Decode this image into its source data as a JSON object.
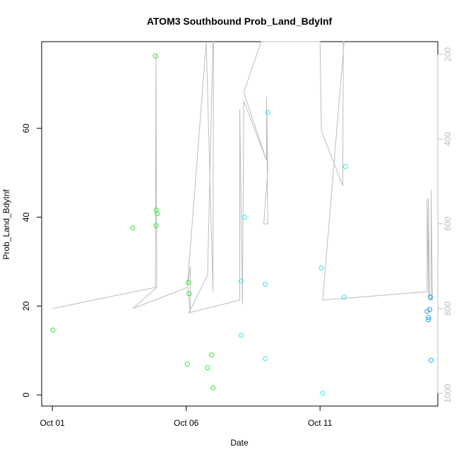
{
  "chart_data": {
    "type": "scatter",
    "title": "ATOM3 Southbound Prob_Land_BdyInf",
    "xlabel": "Date",
    "ylabel": "Prob_Land_BdyInf",
    "x_ticks": [
      {
        "value": 0,
        "label": "Oct 01"
      },
      {
        "value": 5,
        "label": "Oct 06"
      },
      {
        "value": 10,
        "label": "Oct 11"
      }
    ],
    "y_ticks": [
      0,
      20,
      40,
      60
    ],
    "y2_ticks": [
      200,
      400,
      600,
      800,
      1000
    ],
    "xlim": [
      -0.4,
      14.4
    ],
    "ylim": [
      -2.5,
      79.5
    ],
    "y2lim": [
      1030,
      170
    ],
    "colors": {
      "green": "#2ee82e",
      "cyan": "#33e8e8",
      "blue": "#1a9fe6",
      "line": "#bdbdbd",
      "frame": "#000000",
      "right_axis": "#bdbdbd"
    },
    "series": [
      {
        "color_key": "green",
        "points": [
          [
            0.02,
            14.6
          ],
          [
            3.0,
            37.6
          ],
          [
            3.85,
            76.3
          ],
          [
            3.88,
            41.6
          ],
          [
            3.88,
            38.1
          ],
          [
            3.92,
            40.8
          ],
          [
            5.08,
            25.3
          ],
          [
            5.1,
            22.8
          ],
          [
            5.05,
            6.9
          ],
          [
            5.8,
            6.1
          ],
          [
            5.95,
            9.0
          ],
          [
            6.0,
            1.6
          ]
        ]
      },
      {
        "color_key": "cyan",
        "points": [
          [
            7.05,
            13.4
          ],
          [
            7.05,
            25.6
          ],
          [
            7.18,
            40.0
          ],
          [
            7.95,
            24.9
          ],
          [
            7.95,
            8.2
          ],
          [
            8.05,
            63.6
          ],
          [
            10.05,
            28.6
          ],
          [
            10.1,
            0.4
          ],
          [
            10.9,
            22.0
          ],
          [
            10.95,
            51.4
          ]
        ]
      },
      {
        "color_key": "blue",
        "points": [
          [
            14.0,
            18.8
          ],
          [
            14.05,
            17.4
          ],
          [
            14.05,
            16.9
          ],
          [
            14.1,
            19.2
          ],
          [
            14.12,
            22.0
          ],
          [
            14.12,
            22.0
          ],
          [
            14.15,
            7.8
          ]
        ]
      }
    ],
    "secondary_line": {
      "points": [
        [
          0.0,
          800
        ],
        [
          3.85,
          750
        ],
        [
          3.87,
          200
        ],
        [
          3.9,
          750
        ],
        [
          3.0,
          800
        ],
        [
          5.05,
          750
        ],
        [
          5.15,
          700
        ],
        [
          5.15,
          810
        ],
        [
          5.05,
          740
        ],
        [
          5.75,
          140
        ],
        [
          6.0,
          760
        ],
        [
          6.02,
          140
        ],
        [
          6.0,
          100
        ],
        [
          5.8,
          720
        ],
        [
          5.1,
          810
        ],
        [
          7.0,
          780
        ],
        [
          7.0,
          330
        ],
        [
          7.1,
          790
        ],
        [
          7.15,
          310
        ],
        [
          8.0,
          450
        ],
        [
          8.0,
          310
        ],
        [
          8.05,
          600
        ],
        [
          7.9,
          600
        ],
        [
          8.05,
          470
        ],
        [
          8.0,
          300
        ],
        [
          8.0,
          450
        ],
        [
          7.15,
          290
        ],
        [
          7.8,
          140
        ],
        [
          10.0,
          150
        ],
        [
          10.05,
          380
        ],
        [
          10.85,
          510
        ],
        [
          10.87,
          150
        ],
        [
          10.9,
          160
        ],
        [
          10.1,
          780
        ],
        [
          14.0,
          760
        ],
        [
          14.0,
          540
        ],
        [
          14.05,
          770
        ],
        [
          14.05,
          540
        ],
        [
          14.1,
          780
        ],
        [
          14.15,
          780
        ],
        [
          14.15,
          520
        ],
        [
          14.2,
          780
        ]
      ]
    }
  }
}
